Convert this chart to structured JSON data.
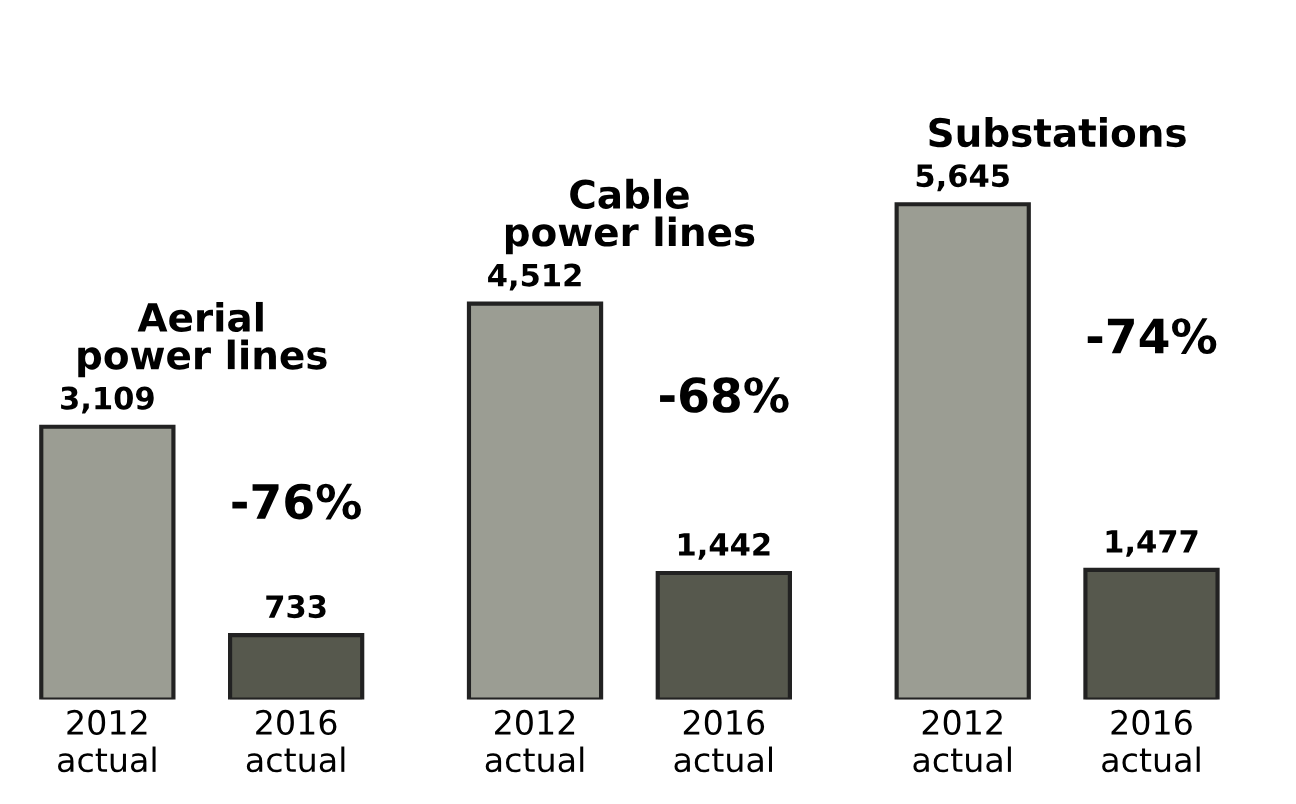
{
  "chart_data": [
    {
      "type": "bar",
      "title": "Aerial\npower lines",
      "categories": [
        "2012\nactual",
        "2016\nactual"
      ],
      "values": [
        3109,
        733
      ],
      "colors": [
        "#9b9d93",
        "#56584d"
      ],
      "value_labels": [
        "3,109",
        "733"
      ],
      "annotations": [
        "-76%"
      ],
      "tick_labels": "x"
    },
    {
      "type": "bar",
      "title": "Cable\npower lines",
      "categories": [
        "2012\nactual",
        "2016\nactual"
      ],
      "values": [
        4512,
        1442
      ],
      "colors": [
        "#9b9d93",
        "#56584d"
      ],
      "value_labels": [
        "4,512",
        "1,442"
      ],
      "annotations": [
        "-68%"
      ],
      "tick_labels": "x"
    },
    {
      "type": "bar",
      "title": "Substations",
      "categories": [
        "2012\nactual",
        "2016\nactual"
      ],
      "values": [
        5645,
        1477
      ],
      "colors": [
        "#9b9d93",
        "#56584d"
      ],
      "value_labels": [
        "5,645",
        "1,477"
      ],
      "annotations": [
        "-74%"
      ],
      "tick_labels": "x"
    }
  ]
}
